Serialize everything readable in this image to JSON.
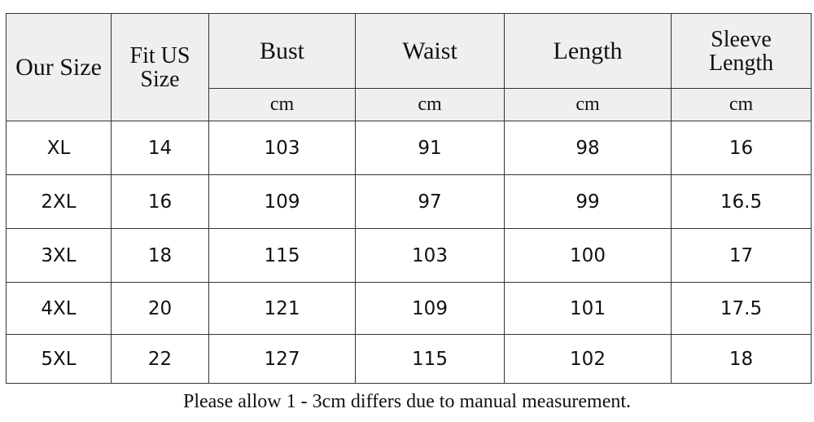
{
  "table": {
    "header": [
      "Our Size",
      "Fit US Size",
      "Bust",
      "Waist",
      "Length",
      "Sleeve Length"
    ],
    "units": [
      "cm",
      "cm",
      "cm",
      "cm"
    ],
    "rows": [
      [
        "XL",
        "14",
        "103",
        "91",
        "98",
        "16"
      ],
      [
        "2XL",
        "16",
        "109",
        "97",
        "99",
        "16.5"
      ],
      [
        "3XL",
        "18",
        "115",
        "103",
        "100",
        "17"
      ],
      [
        "4XL",
        "20",
        "121",
        "109",
        "101",
        "17.5"
      ],
      [
        "5XL",
        "22",
        "127",
        "115",
        "102",
        "18"
      ]
    ]
  },
  "note": "Please allow 1 - 3cm differs due to manual measurement."
}
